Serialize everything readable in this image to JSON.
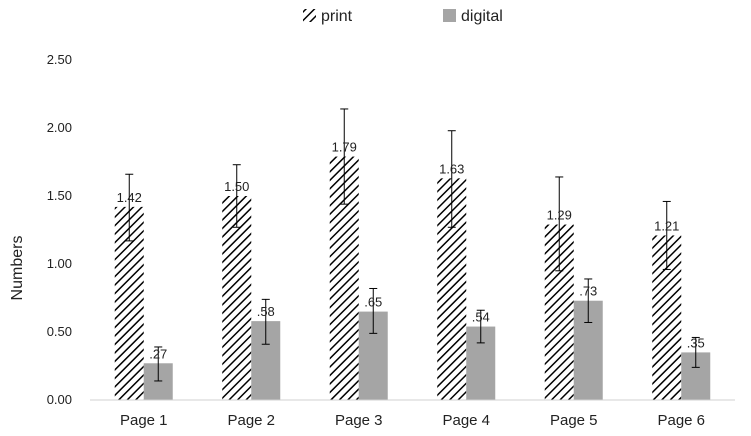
{
  "chart_data": {
    "type": "bar",
    "title": "",
    "xlabel": "",
    "ylabel": "Numbers",
    "ylim": [
      0,
      2.5
    ],
    "yticks": [
      "0.00",
      "0.50",
      "1.00",
      "1.50",
      "2.00",
      "2.50"
    ],
    "grid": false,
    "legend_position": "top-center",
    "categories": [
      "Page 1",
      "Page 2",
      "Page 3",
      "Page 4",
      "Page 5",
      "Page 6"
    ],
    "series": [
      {
        "name": "print",
        "pattern": "diagonal-hatch",
        "color": "#000000",
        "values": [
          1.42,
          1.5,
          1.79,
          1.63,
          1.29,
          1.21
        ],
        "labels": [
          "1.42",
          "1.50",
          "1.79",
          "1.63",
          "1.29",
          "1.21"
        ],
        "error_low": [
          1.17,
          1.27,
          1.44,
          1.27,
          0.95,
          0.96
        ],
        "error_high": [
          1.66,
          1.73,
          2.14,
          1.98,
          1.64,
          1.46
        ]
      },
      {
        "name": "digital",
        "color": "#a5a5a5",
        "values": [
          0.27,
          0.58,
          0.65,
          0.54,
          0.73,
          0.35
        ],
        "labels": [
          ".27",
          ".58",
          ".65",
          ".54",
          ".73",
          ".35"
        ],
        "error_low": [
          0.14,
          0.41,
          0.49,
          0.42,
          0.57,
          0.24
        ],
        "error_high": [
          0.39,
          0.74,
          0.82,
          0.66,
          0.89,
          0.46
        ]
      }
    ]
  }
}
